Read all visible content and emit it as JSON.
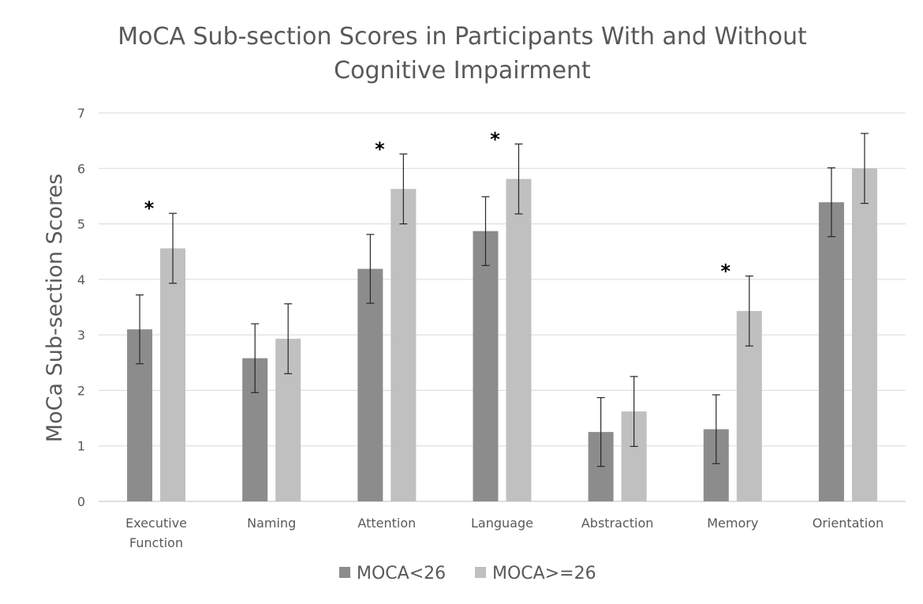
{
  "chart_data": {
    "type": "bar",
    "title": [
      "MoCA Sub-section Scores in Participants With and Without",
      "Cognitive Impairment"
    ],
    "xlabel": "",
    "ylabel": "MoCa Sub-section Scores",
    "ylim": [
      0,
      7
    ],
    "yticks": [
      0,
      1,
      2,
      3,
      4,
      5,
      6,
      7
    ],
    "grid": true,
    "legend_position": "bottom",
    "categories": [
      [
        "Executive",
        "Function"
      ],
      [
        "Naming"
      ],
      [
        "Attention"
      ],
      [
        "Language"
      ],
      [
        "Abstraction"
      ],
      [
        "Memory"
      ],
      [
        "Orientation"
      ]
    ],
    "series": [
      {
        "name": "MOCA<26",
        "color": "#8c8c8c",
        "values": [
          3.1,
          2.58,
          4.19,
          4.87,
          1.25,
          1.3,
          5.39
        ],
        "error": [
          0.62,
          0.62,
          0.62,
          0.62,
          0.62,
          0.62,
          0.62
        ]
      },
      {
        "name": "MOCA>=26",
        "color": "#c0c0c0",
        "values": [
          4.56,
          2.93,
          5.63,
          5.81,
          1.62,
          3.43,
          6.0
        ],
        "error": [
          0.63,
          0.63,
          0.63,
          0.63,
          0.63,
          0.63,
          0.63
        ]
      }
    ],
    "significance": [
      {
        "category_index": 0,
        "label": "*"
      },
      {
        "category_index": 2,
        "label": "*"
      },
      {
        "category_index": 3,
        "label": "*"
      },
      {
        "category_index": 5,
        "label": "*"
      }
    ]
  }
}
